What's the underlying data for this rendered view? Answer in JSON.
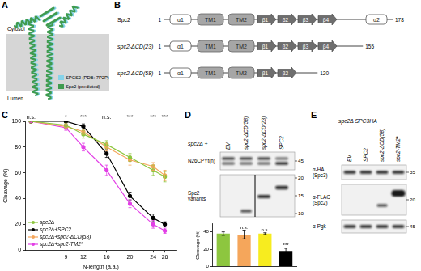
{
  "panel_labels": [
    "A",
    "B",
    "C",
    "D",
    "E"
  ],
  "panel_A": {
    "regions": [
      "Cytosol",
      "Lumen"
    ],
    "legend": [
      {
        "name": "SPCS2 (PDB: 7P2P)",
        "color": "#86d3ea"
      },
      {
        "name": "Spc2 (predicted)",
        "color": "#3f9b4f"
      }
    ]
  },
  "panel_B": {
    "rows": [
      {
        "name": "Spc2",
        "start": 1,
        "end": 178,
        "domains": [
          "α1",
          "TM1",
          "TM2",
          "β1",
          "β2",
          "β3",
          "β4",
          "α2"
        ]
      },
      {
        "name": "spc2-ΔCD(23)",
        "start": 1,
        "end": 155,
        "domains": [
          "α1",
          "TM1",
          "TM2",
          "β1",
          "β2",
          "β3",
          "β4"
        ]
      },
      {
        "name": "spc2-ΔCD(58)",
        "start": 1,
        "end": 120,
        "domains": [
          "α1",
          "TM1",
          "TM2",
          "β1",
          "β2"
        ]
      }
    ]
  },
  "chart_data": [
    {
      "type": "line",
      "x_label": "N-length (a.a.)",
      "y_label": "Cleavage (%)",
      "x": [
        3,
        9,
        12,
        16,
        20,
        24,
        26
      ],
      "xlim": [
        2,
        28
      ],
      "xticks": [
        9,
        12,
        16,
        20,
        24,
        26
      ],
      "ylim": [
        0,
        100
      ],
      "yticks": [
        0,
        20,
        40,
        60,
        80,
        100
      ],
      "annotations": [
        "n.s.",
        "*",
        "***",
        "n.s.",
        "***",
        "***",
        "***"
      ],
      "grid": false,
      "legend": "bottom left",
      "marker": "circle",
      "series": [
        {
          "name": "spc2Δ",
          "color": "#8dc63f",
          "values": [
            100,
            97,
            90,
            82,
            72,
            62,
            57
          ],
          "errors": [
            1,
            2,
            3,
            3,
            3,
            4,
            4
          ]
        },
        {
          "name": "spc2Δ+SPC2",
          "color": "#000000",
          "values": [
            100,
            100,
            96,
            75,
            42,
            25,
            20
          ],
          "errors": [
            1,
            1,
            2,
            3,
            3,
            3,
            2
          ]
        },
        {
          "name": "spc2Δ+spc2-ΔCD(58)",
          "color": "#f5a65b",
          "values": [
            100,
            96,
            92,
            80,
            70,
            65,
            58
          ],
          "errors": [
            1,
            2,
            2,
            3,
            4,
            3,
            4
          ]
        },
        {
          "name": "spc2Δ+spc2-TM2*",
          "color": "#e23fe6",
          "values": [
            100,
            95,
            80,
            62,
            36,
            20,
            15
          ],
          "errors": [
            1,
            2,
            3,
            4,
            3,
            3,
            2
          ]
        }
      ]
    },
    {
      "type": "bar",
      "y_label": "Cleavage (%)",
      "categories": [
        null,
        null,
        null,
        null
      ],
      "values": [
        38,
        37,
        38,
        18
      ],
      "errors": [
        2,
        5,
        1,
        3
      ],
      "colors": [
        "#8dc63f",
        "#f5a65b",
        "#f7ec1f",
        "#000000"
      ],
      "ylim": [
        0,
        50
      ],
      "yticks": [
        0,
        20,
        40
      ],
      "annotations": [
        null,
        "n.s.",
        "n.s.",
        "***"
      ],
      "tick_labels": "y",
      "grid": false
    }
  ],
  "panel_D_blot": {
    "header": "spc2Δ +",
    "lanes": [
      "EV",
      "spc2-ΔCD(58)",
      "spc2-ΔCD(23)",
      "SPC2"
    ],
    "blots": [
      {
        "label": "N26CPYt(h)",
        "markers": [
          45
        ]
      },
      {
        "label": "Spc2 variants",
        "markers": [
          20,
          15,
          10
        ]
      }
    ]
  },
  "panel_E": {
    "header": "spc2Δ SPC3HA",
    "lanes": [
      "EV",
      "SPC2",
      "spc2-ΔCD(58)",
      "spc2-TM2*"
    ],
    "blots": [
      {
        "label": "α-HA (Spc3)",
        "markers": [
          35
        ]
      },
      {
        "label": "α-FLAG (Spc2)",
        "markers": [
          20
        ]
      },
      {
        "label": "α-Pgk",
        "markers": [
          45
        ]
      }
    ]
  }
}
